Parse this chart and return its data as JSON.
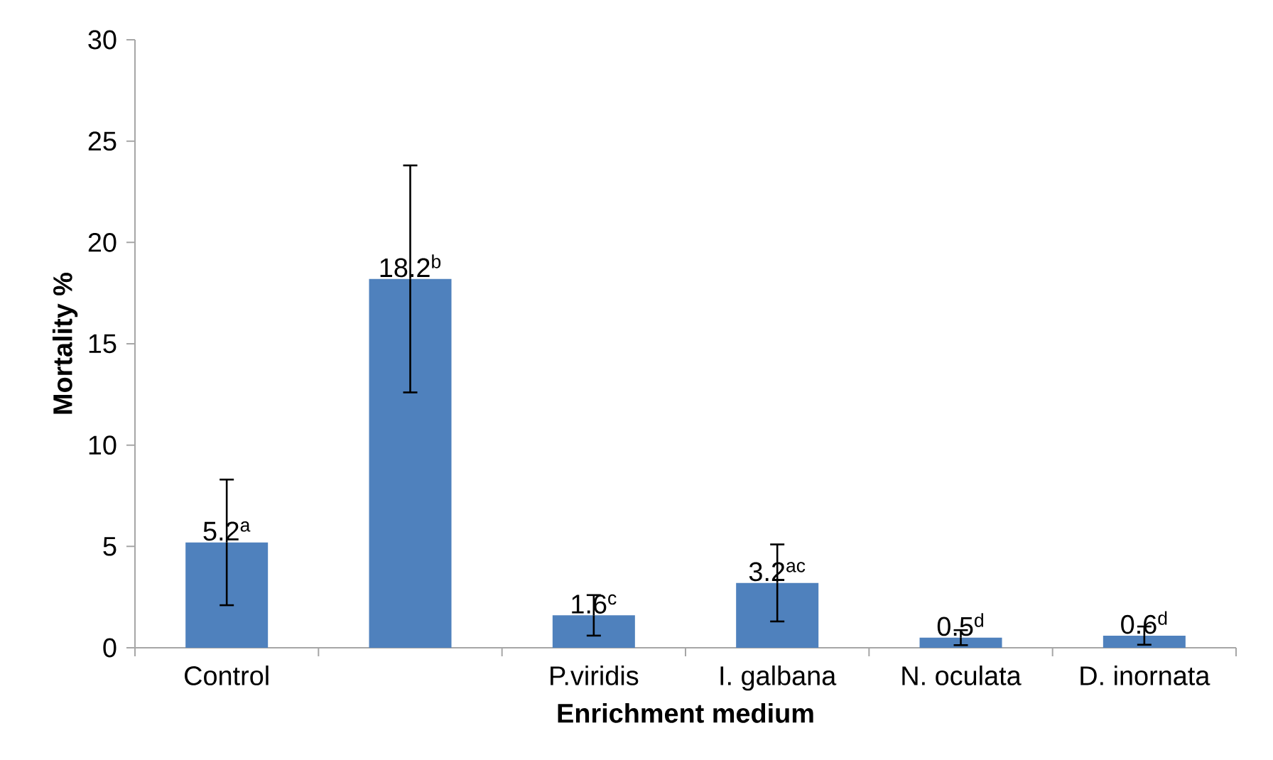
{
  "chart_data": {
    "type": "bar",
    "xlabel": "Enrichment medium",
    "ylabel": "Mortality %",
    "categories": [
      "Control",
      null,
      "P.viridis",
      "I. galbana",
      "N. oculata",
      "D. inornata"
    ],
    "values": [
      5.2,
      18.2,
      1.6,
      3.2,
      0.5,
      0.6
    ],
    "errors": [
      3.1,
      5.6,
      1.0,
      1.9,
      0.37,
      0.45
    ],
    "value_labels": [
      "5.2$^{a}$",
      "18.2$^{b}$",
      "1.6$^{c}$",
      "3.2$^{ac}$",
      "0.5$^{d}$",
      "0.6$^{d}$"
    ],
    "color": "#4f81bd",
    "ylim": [
      0,
      30
    ],
    "yticks": [
      0,
      5,
      10,
      15,
      20,
      25,
      30
    ],
    "grid": false
  }
}
